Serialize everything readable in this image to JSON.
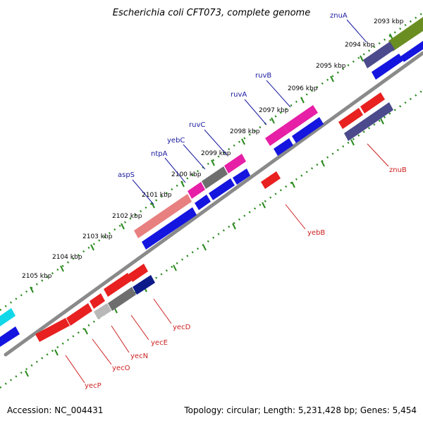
{
  "title": "Escherichia coli CFT073, complete genome",
  "accession": "Accession: NC_004431",
  "summary": "Topology: circular; Length: 5,231,428 bp; Genes: 5,454",
  "colors": {
    "backbone": "#8a8a8a",
    "tick": "#2a8a1e",
    "label_blue": "#1a1aa0",
    "label_red": "#cc2020"
  },
  "kbp_labels": [
    "2093 kbp",
    "2094 kbp",
    "2095 kbp",
    "2096 kbp",
    "2097 kbp",
    "2098 kbp",
    "2099 kbp",
    "2100 kbp",
    "2101 kbp",
    "2102 kbp",
    "2103 kbp",
    "2104 kbp",
    "2105 kbp"
  ],
  "gene_labels_outer": [
    "znuA",
    "ruvB",
    "ruvA",
    "ruvC",
    "yebC",
    "ntpA",
    "aspS"
  ],
  "gene_labels_inner": [
    "znuB",
    "yebB",
    "yecD",
    "yecE",
    "yecN",
    "yecO",
    "yecP"
  ]
}
